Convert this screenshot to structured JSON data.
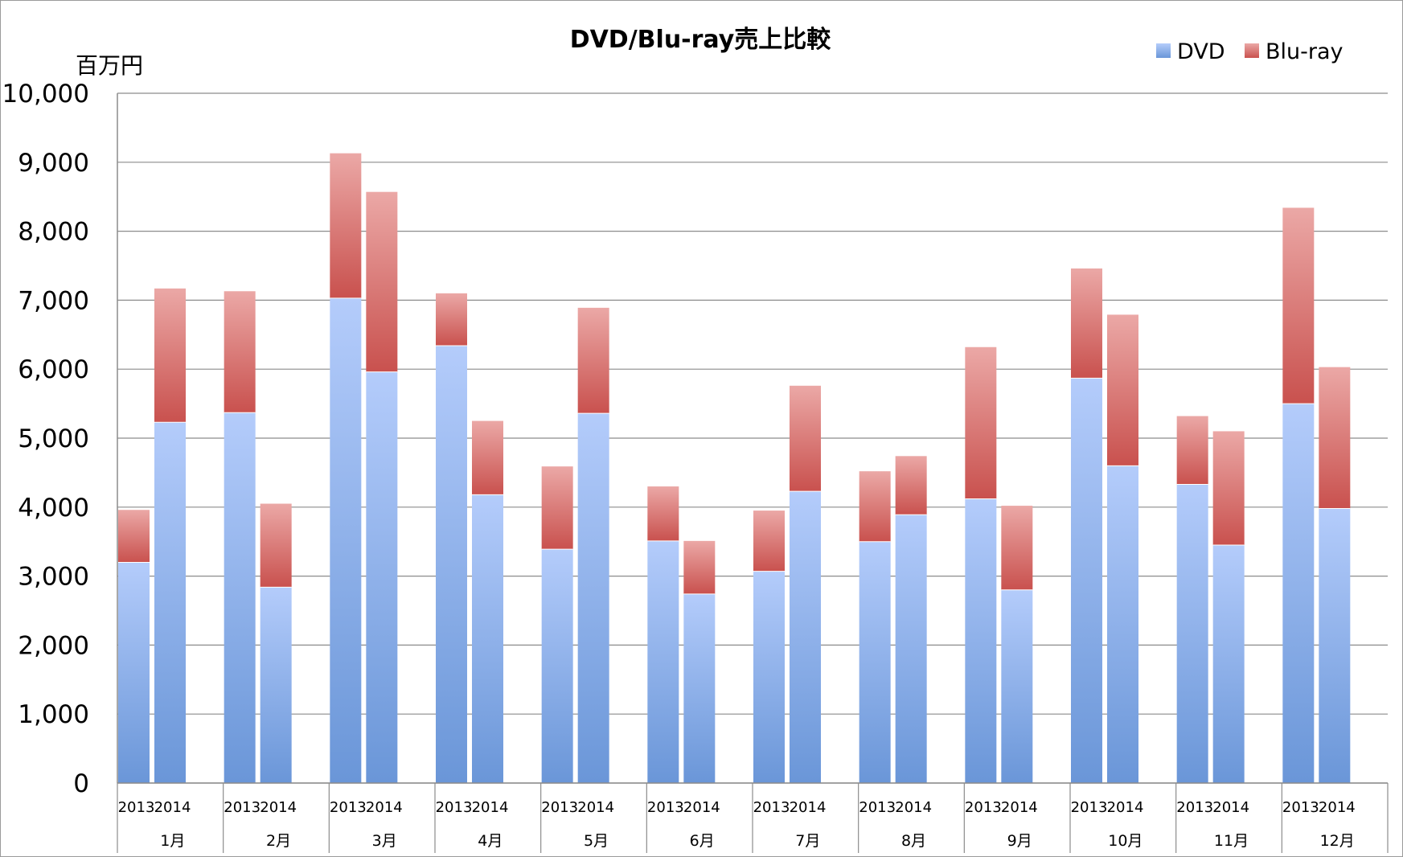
{
  "chart_data": {
    "type": "bar",
    "stacked": true,
    "title": "DVD/Blu-ray売上比較",
    "ylabel": "百万円",
    "ylim": [
      0,
      10000
    ],
    "yticks": [
      0,
      1000,
      2000,
      3000,
      4000,
      5000,
      6000,
      7000,
      8000,
      9000,
      10000
    ],
    "ytick_labels": [
      "0",
      "1,000",
      "2,000",
      "3,000",
      "4,000",
      "5,000",
      "6,000",
      "7,000",
      "8,000",
      "9,000",
      "10,000"
    ],
    "grid": true,
    "legend_position": "top-right",
    "groups": [
      "1月",
      "2月",
      "3月",
      "4月",
      "5月",
      "6月",
      "7月",
      "8月",
      "9月",
      "10月",
      "11月",
      "12月"
    ],
    "subcategories": [
      "2013",
      "2014"
    ],
    "series": [
      {
        "name": "DVD",
        "color": "#8FAEEA",
        "values": [
          [
            3200,
            5230
          ],
          [
            5370,
            2840
          ],
          [
            7030,
            5960
          ],
          [
            6340,
            4180
          ],
          [
            3390,
            5360
          ],
          [
            3510,
            2740
          ],
          [
            3070,
            4230
          ],
          [
            3500,
            3890
          ],
          [
            4120,
            2800
          ],
          [
            5870,
            4600
          ],
          [
            4330,
            3450
          ],
          [
            5500,
            3980
          ]
        ]
      },
      {
        "name": "Blu-ray",
        "color": "#D9807D",
        "values": [
          [
            760,
            1940
          ],
          [
            1760,
            1210
          ],
          [
            2100,
            2610
          ],
          [
            760,
            1070
          ],
          [
            1200,
            1530
          ],
          [
            790,
            770
          ],
          [
            880,
            1530
          ],
          [
            1020,
            850
          ],
          [
            2200,
            1220
          ],
          [
            1590,
            2190
          ],
          [
            990,
            1650
          ],
          [
            2840,
            2050
          ]
        ]
      }
    ]
  }
}
